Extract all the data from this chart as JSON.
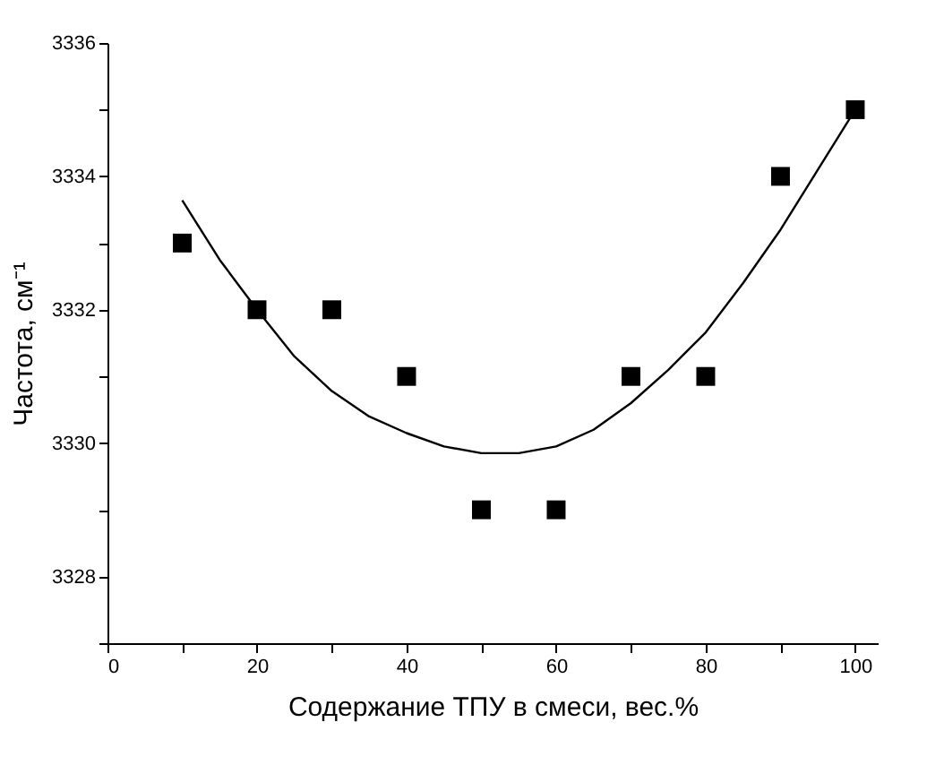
{
  "chart_data": {
    "type": "scatter",
    "xlabel": "Содержание ТПУ в смеси, вес.%",
    "ylabel": "Частота,  см⁻¹",
    "x": [
      10,
      20,
      30,
      40,
      50,
      60,
      70,
      80,
      90,
      100
    ],
    "series": [
      {
        "marker": "square",
        "color": "#000000",
        "values": [
          3333,
          3332,
          3332,
          3331,
          3329,
          3329,
          3331,
          3331,
          3334,
          3335
        ]
      },
      {
        "type": "line",
        "line_style": "solid",
        "color": "#000000",
        "x": [
          10,
          15,
          20,
          25,
          30,
          35,
          40,
          45,
          50,
          55,
          60,
          65,
          70,
          75,
          80,
          85,
          90,
          95,
          100
        ],
        "values": [
          3333.64,
          3332.75,
          3332.0,
          3331.3,
          3330.78,
          3330.4,
          3330.15,
          3329.95,
          3329.85,
          3329.85,
          3329.95,
          3330.2,
          3330.6,
          3331.1,
          3331.66,
          3332.4,
          3333.2,
          3334.1,
          3335.0
        ]
      }
    ],
    "xlim": [
      0,
      103
    ],
    "xticks": [
      0,
      {
        "value": 10,
        "label": null
      },
      20,
      {
        "value": 30,
        "label": null
      },
      40,
      {
        "value": 50,
        "label": null
      },
      60,
      {
        "value": 70,
        "label": null
      },
      80,
      {
        "value": 90,
        "label": null
      },
      100
    ],
    "ylim": [
      3327,
      3336
    ],
    "yticks": [
      {
        "value": 3327,
        "label": null
      },
      3328,
      {
        "value": 3329,
        "label": null
      },
      3330,
      {
        "value": 3331,
        "label": null
      },
      3332,
      {
        "value": 3333,
        "label": null
      },
      3334,
      {
        "value": 3335,
        "label": null
      },
      3336
    ],
    "grid": false
  }
}
